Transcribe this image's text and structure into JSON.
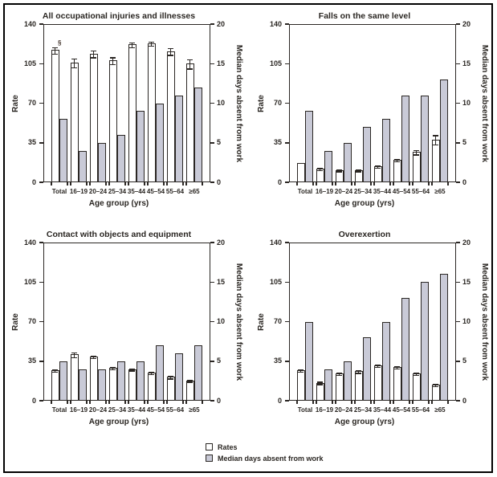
{
  "figure": {
    "categories": [
      "Total",
      "16–19",
      "20–24",
      "25–34",
      "35–44",
      "45–54",
      "55–64",
      "≥65"
    ],
    "xlabel": "Age group (yrs)",
    "left_axis": {
      "label": "Rate",
      "ticks": [
        0,
        35,
        70,
        105,
        140
      ],
      "max": 140
    },
    "right_axis": {
      "label": "Median days absent from work",
      "ticks": [
        0,
        5,
        10,
        15,
        20
      ],
      "max": 20
    },
    "legend": {
      "items": [
        {
          "label": "Rates",
          "swatch": "rates-swatch",
          "fill": "#ffffff"
        },
        {
          "label": "Median days absent from work",
          "swatch": "median-swatch",
          "fill": "#c9cad7"
        }
      ]
    },
    "colors": {
      "bar_outline": "#2b2724",
      "median_fill": "#c9cad7",
      "rates_fill": "#ffffff",
      "axis": "#2b2724",
      "text": "#2a2622",
      "border": "#000000"
    },
    "footnote_symbol": "§"
  },
  "chart_data": [
    {
      "type": "bar",
      "title": "All occupational injuries and illnesses",
      "xlabel": "Age group (yrs)",
      "categories": [
        "Total",
        "16–19",
        "20–24",
        "25–34",
        "35–44",
        "45–54",
        "55–64",
        "≥65"
      ],
      "axes": {
        "left": {
          "label": "Rate",
          "ylim": [
            0,
            140
          ]
        },
        "right": {
          "label": "Median days absent from work",
          "ylim": [
            0,
            20
          ]
        }
      },
      "series": [
        {
          "name": "Rates",
          "axis": "left",
          "values": [
            117,
            106,
            114,
            108,
            122,
            123,
            116,
            105
          ],
          "errors": [
            3,
            4,
            3,
            3,
            2,
            2,
            3,
            4
          ],
          "annotations": [
            {
              "index": 0,
              "text": "§"
            }
          ]
        },
        {
          "name": "Median days absent from work",
          "axis": "right",
          "values": [
            8,
            4,
            5,
            6,
            9,
            10,
            11,
            12
          ]
        }
      ]
    },
    {
      "type": "bar",
      "title": "Falls on the same level",
      "xlabel": "Age group (yrs)",
      "categories": [
        "Total",
        "16–19",
        "20–24",
        "25–34",
        "35–44",
        "45–54",
        "55–64",
        "≥65"
      ],
      "axes": {
        "left": {
          "label": "Rate",
          "ylim": [
            0,
            140
          ]
        },
        "right": {
          "label": "Median days absent from work",
          "ylim": [
            0,
            20
          ]
        }
      },
      "series": [
        {
          "name": "Rates",
          "axis": "left",
          "values": [
            17,
            12,
            11,
            11,
            14,
            20,
            27,
            38
          ],
          "errors": [
            0,
            1,
            1,
            1,
            1,
            1,
            2,
            4
          ],
          "annotations": []
        },
        {
          "name": "Median days absent from work",
          "axis": "right",
          "values": [
            9,
            4,
            5,
            7,
            8,
            11,
            11,
            13
          ]
        }
      ]
    },
    {
      "type": "bar",
      "title": "Contact with objects and equipment",
      "xlabel": "Age group (yrs)",
      "categories": [
        "Total",
        "16–19",
        "20–24",
        "25–34",
        "35–44",
        "45–54",
        "55–64",
        "≥65"
      ],
      "axes": {
        "left": {
          "label": "Rate",
          "ylim": [
            0,
            140
          ]
        },
        "right": {
          "label": "Median days absent from work",
          "ylim": [
            0,
            20
          ]
        }
      },
      "series": [
        {
          "name": "Rates",
          "axis": "left",
          "values": [
            27,
            41,
            39,
            29,
            28,
            25,
            21,
            18
          ],
          "errors": [
            1,
            2,
            1,
            1,
            1,
            1,
            1,
            1
          ],
          "annotations": []
        },
        {
          "name": "Median days absent from work",
          "axis": "right",
          "values": [
            5,
            4,
            4,
            5,
            5,
            7,
            6,
            7
          ]
        }
      ]
    },
    {
      "type": "bar",
      "title": "Overexertion",
      "xlabel": "Age group (yrs)",
      "categories": [
        "Total",
        "16–19",
        "20–24",
        "25–34",
        "35–44",
        "45–54",
        "55–64",
        "≥65"
      ],
      "axes": {
        "left": {
          "label": "Rate",
          "ylim": [
            0,
            140
          ]
        },
        "right": {
          "label": "Median days absent from work",
          "ylim": [
            0,
            20
          ]
        }
      },
      "series": [
        {
          "name": "Rates",
          "axis": "left",
          "values": [
            27,
            16,
            24,
            26,
            31,
            30,
            24,
            14
          ],
          "errors": [
            1,
            1,
            1,
            1,
            1,
            1,
            1,
            1
          ],
          "annotations": []
        },
        {
          "name": "Median days absent from work",
          "axis": "right",
          "values": [
            10,
            4,
            5,
            8,
            10,
            13,
            15,
            16
          ]
        }
      ]
    }
  ]
}
